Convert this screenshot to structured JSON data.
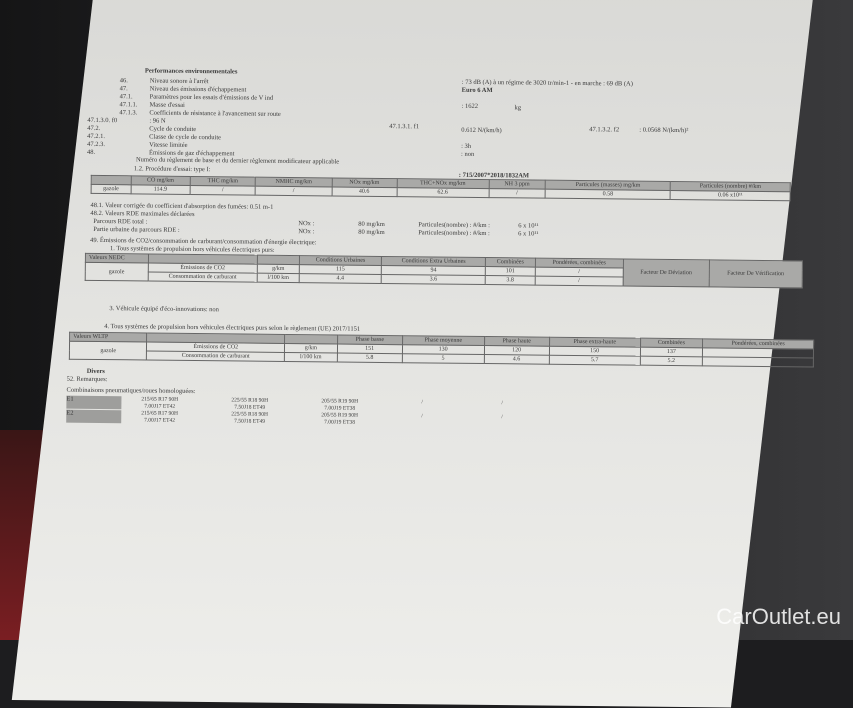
{
  "header": {
    "title": "Performances environnementales"
  },
  "items": [
    {
      "num": "46.",
      "label": "Niveau sonore à l'arrêt",
      "value": ": 73 dB (A)   à un régime de 3020 tr/min-1 - en marche :   69 dB (A)"
    },
    {
      "num": "47.",
      "label": "Niveau des émissions d'échappement",
      "value": "Euro 6 AM"
    },
    {
      "num": "47.1.",
      "label": "Paramètres pour les essais d'émissions de V ind",
      "value": ""
    },
    {
      "num": "47.1.1.",
      "label": "Masse d'essai",
      "value": ": 1622",
      "unit": "kg"
    },
    {
      "num": "47.1.3.",
      "label": "Coefficients de résistance à l'avancement sur route",
      "value": ""
    },
    {
      "num": "47.1.3.0. f0",
      "label": ": 96 N",
      "value": ""
    },
    {
      "num": "47.2.",
      "label": "Cycle de conduite",
      "value": "0.612 N/(km/h)",
      "sub": "47.1.3.1.  f1",
      "sub2": "47.1.3.2.  f2",
      "value2": ": 0.0568 N/(km/h)²"
    },
    {
      "num": "47.2.1.",
      "label": "Classe de cycle de conduite",
      "value": ""
    },
    {
      "num": "47.2.3.",
      "label": "Vitesse limitée",
      "value": ": 3h"
    },
    {
      "num": "48.",
      "label": "Émissions de gaz d'échappement",
      "value": ": non"
    }
  ],
  "regulation": {
    "label": "Numéro du règlement de base et du dernier règlement modificateur applicable",
    "procedure": "1.2. Procédure d'essai: type I:",
    "value": ": 715/2007*2018/1832AM"
  },
  "emissions_table": {
    "headers": [
      "",
      "CO mg/km",
      "THC mg/km",
      "NMHC mg/km",
      "NOx mg/km",
      "THC+NOx mg/km",
      "NH 3 ppm",
      "Particules (masses) mg/km",
      "Particules (nombre) #/km"
    ],
    "row": [
      "gazole",
      "114.9",
      "/",
      "/",
      "40.6",
      "62.6",
      "/",
      "0.58",
      "0.06 x10¹¹"
    ]
  },
  "line_48_1": "48.1.     Valeur corrigée du coefficient d'absorption des fumées: 0.51 m-1",
  "line_48_2": "48.2.     Valeurs RDE maximales déclarées",
  "rde": [
    {
      "label": "Parcours RDE total :",
      "nox": "NOx :",
      "nox_val": "80 mg/km",
      "part": "Particules(nombre) : #/km :",
      "part_val": "6 x 10¹¹"
    },
    {
      "label": "Partie urbaine du parcours RDE   :",
      "nox": "NOx :",
      "nox_val": "80 mg/km",
      "part": "Particules(nombre) : #/km :",
      "part_val": "6 x 10¹¹"
    }
  ],
  "line_49": "49.       Émissions de CO2/consommation de carburant/consommation d'énergie électrique:",
  "line_49_1": "1. Tous systèmes de propulsion hors véhicules électriques purs:",
  "nedc": {
    "title": "Valeurs NEDC",
    "fuel": "gazole",
    "headers": [
      "Conditions Urbaines",
      "Conditions Extra Urbaines",
      "Combinées",
      "Pondérées, combinées",
      "Facteur De Déviation",
      "Facteur De Vérification"
    ],
    "rows": [
      {
        "label": "Émissions de CO2",
        "unit": "g/km",
        "vals": [
          "115",
          "94",
          "101",
          "/"
        ]
      },
      {
        "label": "Consommation de carburant",
        "unit": "l/100 km",
        "vals": [
          "4.4",
          "3.6",
          "3.8",
          "/"
        ]
      }
    ],
    "dev": "/",
    "ver": "/"
  },
  "eco": "3. Véhicule équipé d'éco-innovations: non",
  "line_4": "4. Tous systèmes de propulsion hors véhicules électriques purs selon le règlement (UE) 2017/1151",
  "wltp": {
    "title": "Valeurs WLTP",
    "fuel": "gazole",
    "headers": [
      "Phase basse",
      "Phase moyenne",
      "Phase haute",
      "Phase extra-haute",
      "Combinées",
      "Pondérées, combinées"
    ],
    "rows": [
      {
        "label": "Émissions de CO2",
        "unit": "g/km",
        "vals": [
          "151",
          "130",
          "120",
          "150",
          "137",
          ""
        ]
      },
      {
        "label": "Consommation de carburant",
        "unit": "l/100 km",
        "vals": [
          "5.8",
          "5",
          "4.6",
          "5.7",
          "5.2",
          ""
        ]
      }
    ]
  },
  "divers": "Divers",
  "remarques": "52.        Remarques:",
  "tyres_title": "Combinaisons pneumatiques/roues homologuées:",
  "tyres": [
    {
      "id": "E1",
      "c": [
        "215/65 R17 90H\n7.00J17 ET42",
        "225/55 R18 90H\n7.50J18 ET49",
        "205/55 R19 90H\n7.00J19 ET38",
        "/",
        "/"
      ]
    },
    {
      "id": "E2",
      "c": [
        "215/65 R17 90H\n7.00J17 ET42",
        "225/55 R18 90H\n7.50J18 ET49",
        "205/55 R19 90H\n7.00J19 ET38",
        "/",
        "/"
      ]
    }
  ],
  "watermark": "CarOutlet.eu",
  "colors": {
    "paper": "#e4e4e1",
    "table_header": "#a9a9a7",
    "background": "#1d1d1f"
  }
}
